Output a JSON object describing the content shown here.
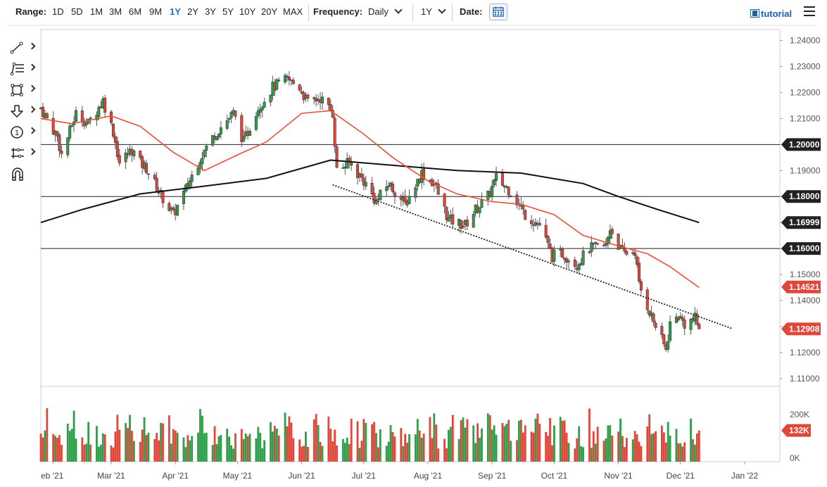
{
  "toolbar": {
    "range_label": "Range:",
    "ranges": [
      "1D",
      "5D",
      "1M",
      "3M",
      "6M",
      "9M",
      "1Y",
      "2Y",
      "3Y",
      "5Y",
      "10Y",
      "20Y",
      "MAX"
    ],
    "active_range": "1Y",
    "frequency_label": "Frequency:",
    "frequency_value": "Daily",
    "period_value": "1Y",
    "date_label": "Date:",
    "tutorial_label": "tutorial"
  },
  "drawing_tools": [
    "line-tool-icon",
    "fibonacci-tool-icon",
    "rectangle-tool-icon",
    "arrow-tool-icon",
    "annotation-tool-icon",
    "measure-tool-icon",
    "magnet-tool-icon"
  ],
  "annotation_number": "1",
  "colors": {
    "up": "#2e9e49",
    "down": "#e0463a",
    "ma_short": "#e8503a",
    "ma_long": "#111111",
    "badge_red": "#e0463a",
    "badge_dark": "#222222",
    "accent": "#1a73c8"
  },
  "chart_data": {
    "type": "candlestick",
    "y_ticks": [
      "1.24000",
      "1.23000",
      "1.22000",
      "1.21000",
      "1.20000",
      "1.19000",
      "1.18000",
      "1.17000",
      "1.16000",
      "1.15000",
      "1.14000",
      "1.13000",
      "1.12000",
      "1.11000"
    ],
    "ylim": [
      1.107,
      1.2442
    ],
    "x_ticks": [
      "eb '21",
      "Mar '21",
      "Apr '21",
      "May '21",
      "Jun '21",
      "Jul '21",
      "Aug '21",
      "Sep '21",
      "Oct '21",
      "Nov '21",
      "Dec '21",
      "Jan '22"
    ],
    "x_tick_dates": [
      "2021-02-01",
      "2021-03-01",
      "2021-04-01",
      "2021-05-01",
      "2021-06-01",
      "2021-07-01",
      "2021-08-01",
      "2021-09-01",
      "2021-10-01",
      "2021-11-01",
      "2021-12-01",
      "2022-01-01"
    ],
    "x_range": [
      "2021-01-26",
      "2022-01-18"
    ],
    "horizontal_lines": [
      1.2,
      1.18,
      1.16
    ],
    "trendline": {
      "from": {
        "date": "2021-06-16",
        "value": 1.1845
      },
      "to": {
        "date": "2021-12-26",
        "value": 1.1292
      }
    },
    "price_labels": [
      {
        "value": 1.2,
        "text": "1.20000",
        "style": "dark"
      },
      {
        "value": 1.18,
        "text": "1.18000",
        "style": "dark"
      },
      {
        "value": 1.16999,
        "text": "1.16999",
        "style": "dark"
      },
      {
        "value": 1.16,
        "text": "1.16000",
        "style": "dark"
      },
      {
        "value": 1.14521,
        "text": "1.14521",
        "style": "red"
      },
      {
        "value": 1.12908,
        "text": "1.12908",
        "style": "red"
      }
    ],
    "close_path": [
      [
        "2021-01-26",
        1.214
      ],
      [
        "2021-02-03",
        1.203
      ],
      [
        "2021-02-05",
        1.196
      ],
      [
        "2021-02-12",
        1.212
      ],
      [
        "2021-02-18",
        1.208
      ],
      [
        "2021-02-25",
        1.217
      ],
      [
        "2021-03-02",
        1.205
      ],
      [
        "2021-03-05",
        1.193
      ],
      [
        "2021-03-11",
        1.198
      ],
      [
        "2021-03-15",
        1.193
      ],
      [
        "2021-03-18",
        1.191
      ],
      [
        "2021-03-24",
        1.182
      ],
      [
        "2021-03-31",
        1.173
      ],
      [
        "2021-04-05",
        1.181
      ],
      [
        "2021-04-13",
        1.195
      ],
      [
        "2021-04-20",
        1.204
      ],
      [
        "2021-04-29",
        1.212
      ],
      [
        "2021-05-04",
        1.201
      ],
      [
        "2021-05-10",
        1.213
      ],
      [
        "2021-05-18",
        1.222
      ],
      [
        "2021-05-25",
        1.225
      ],
      [
        "2021-05-31",
        1.222
      ],
      [
        "2021-06-04",
        1.216
      ],
      [
        "2021-06-10",
        1.218
      ],
      [
        "2021-06-16",
        1.212
      ],
      [
        "2021-06-18",
        1.19
      ],
      [
        "2021-06-24",
        1.193
      ],
      [
        "2021-07-01",
        1.186
      ],
      [
        "2021-07-07",
        1.178
      ],
      [
        "2021-07-13",
        1.185
      ],
      [
        "2021-07-21",
        1.177
      ],
      [
        "2021-07-29",
        1.189
      ],
      [
        "2021-08-04",
        1.185
      ],
      [
        "2021-08-11",
        1.171
      ],
      [
        "2021-08-19",
        1.169
      ],
      [
        "2021-08-24",
        1.175
      ],
      [
        "2021-08-30",
        1.18
      ],
      [
        "2021-09-03",
        1.187
      ],
      [
        "2021-09-10",
        1.182
      ],
      [
        "2021-09-17",
        1.173
      ],
      [
        "2021-09-24",
        1.169
      ],
      [
        "2021-09-30",
        1.157
      ],
      [
        "2021-10-05",
        1.158
      ],
      [
        "2021-10-12",
        1.154
      ],
      [
        "2021-10-18",
        1.16
      ],
      [
        "2021-10-26",
        1.161
      ],
      [
        "2021-10-28",
        1.168
      ],
      [
        "2021-11-03",
        1.158
      ],
      [
        "2021-11-09",
        1.159
      ],
      [
        "2021-11-11",
        1.146
      ],
      [
        "2021-11-18",
        1.132
      ],
      [
        "2021-11-24",
        1.121
      ],
      [
        "2021-11-26",
        1.131
      ],
      [
        "2021-11-30",
        1.134
      ],
      [
        "2021-12-03",
        1.131
      ],
      [
        "2021-12-08",
        1.133
      ],
      [
        "2021-12-10",
        1.129
      ]
    ],
    "ma_short_path": [
      [
        "2021-01-26",
        1.21
      ],
      [
        "2021-02-10",
        1.208
      ],
      [
        "2021-03-01",
        1.211
      ],
      [
        "2021-03-15",
        1.207
      ],
      [
        "2021-03-31",
        1.197
      ],
      [
        "2021-04-15",
        1.19
      ],
      [
        "2021-05-01",
        1.196
      ],
      [
        "2021-05-15",
        1.201
      ],
      [
        "2021-06-01",
        1.212
      ],
      [
        "2021-06-15",
        1.213
      ],
      [
        "2021-07-01",
        1.204
      ],
      [
        "2021-07-15",
        1.195
      ],
      [
        "2021-08-01",
        1.186
      ],
      [
        "2021-08-15",
        1.181
      ],
      [
        "2021-09-01",
        1.178
      ],
      [
        "2021-09-15",
        1.177
      ],
      [
        "2021-10-01",
        1.173
      ],
      [
        "2021-10-15",
        1.165
      ],
      [
        "2021-11-01",
        1.161
      ],
      [
        "2021-11-15",
        1.158
      ],
      [
        "2021-11-26",
        1.153
      ],
      [
        "2021-12-10",
        1.145
      ]
    ],
    "ma_long_path": [
      [
        "2021-01-26",
        1.17
      ],
      [
        "2021-02-15",
        1.175
      ],
      [
        "2021-03-15",
        1.181
      ],
      [
        "2021-04-15",
        1.184
      ],
      [
        "2021-05-15",
        1.187
      ],
      [
        "2021-06-15",
        1.194
      ],
      [
        "2021-07-15",
        1.192
      ],
      [
        "2021-08-15",
        1.19
      ],
      [
        "2021-09-15",
        1.189
      ],
      [
        "2021-10-15",
        1.185
      ],
      [
        "2021-11-01",
        1.18
      ],
      [
        "2021-11-20",
        1.175
      ],
      [
        "2021-12-10",
        1.17
      ]
    ],
    "volume_ticks": [
      "200K",
      "0K"
    ],
    "volume_ylim": [
      0,
      280
    ],
    "volume_last": "132K",
    "volume_range": [
      55,
      240
    ],
    "last_close": 1.12908
  }
}
